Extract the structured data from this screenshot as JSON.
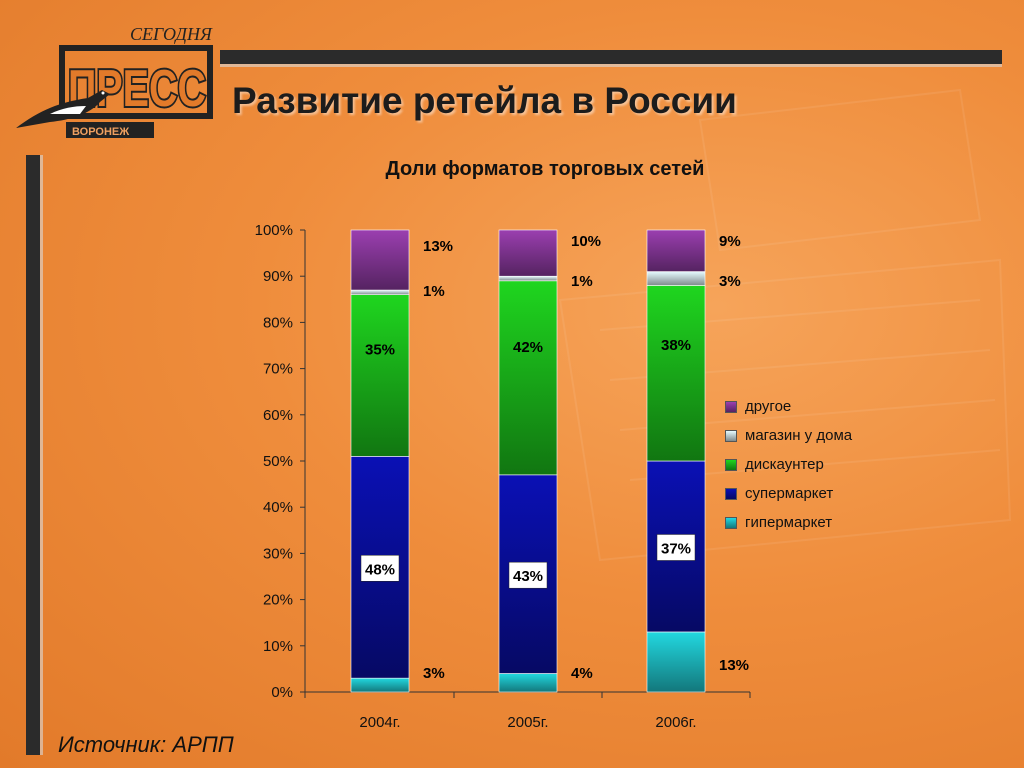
{
  "header": {
    "title": "Развитие ретейла в России",
    "logo": {
      "top_text": "СЕГОДНЯ",
      "main_text": "ПРЕСС",
      "sub_text": "ВОРОНЕЖ",
      "icon": "magpie-icon"
    }
  },
  "footer": {
    "source": "Источник: АРПП"
  },
  "colors": {
    "other": "#9b3fb0",
    "home_store": "#e6fbff",
    "discounter": "#1fd61f",
    "supermarket": "#0a10b5",
    "hypermarket": "#22d8e0",
    "background": "#ef8d3c"
  },
  "chart_data": {
    "type": "bar",
    "stacked": true,
    "title": "Доли форматов торговых сетей",
    "categories": [
      "2004г.",
      "2005г.",
      "2006г."
    ],
    "y_ticks": [
      "0%",
      "10%",
      "20%",
      "30%",
      "40%",
      "50%",
      "60%",
      "70%",
      "80%",
      "90%",
      "100%"
    ],
    "ylim": [
      0,
      100
    ],
    "legend_position": "right",
    "series": [
      {
        "name": "гипермаркет",
        "color_key": "hypermarket",
        "values": [
          3,
          4,
          13
        ],
        "labels": [
          "3%",
          "4%",
          "13%"
        ]
      },
      {
        "name": "супермаркет",
        "color_key": "supermarket",
        "values": [
          48,
          43,
          37
        ],
        "labels": [
          "48%",
          "43%",
          "37%"
        ]
      },
      {
        "name": "дискаунтер",
        "color_key": "discounter",
        "values": [
          35,
          42,
          38
        ],
        "labels": [
          "35%",
          "42%",
          "38%"
        ]
      },
      {
        "name": "магазин у дома",
        "color_key": "home_store",
        "values": [
          1,
          1,
          3
        ],
        "labels": [
          "1%",
          "1%",
          "3%"
        ]
      },
      {
        "name": "другое",
        "color_key": "other",
        "values": [
          13,
          10,
          9
        ],
        "labels": [
          "13%",
          "10%",
          "9%"
        ]
      }
    ],
    "legend": [
      "другое",
      "магазин у дома",
      "дискаунтер",
      "супермаркет",
      "гипермаркет"
    ]
  }
}
